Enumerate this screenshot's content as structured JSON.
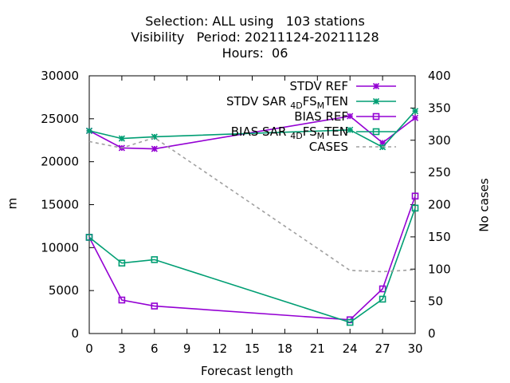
{
  "chart_data": {
    "type": "line",
    "title_lines": [
      "Selection: ALL using   103 stations",
      "Visibility   Period: 20211124-20211128",
      "Hours:  06"
    ],
    "xlabel": "Forecast length",
    "ylabel": "m",
    "y2label": "No cases",
    "x_ticks": [
      0,
      3,
      6,
      9,
      12,
      15,
      18,
      21,
      24,
      27,
      30
    ],
    "xlim": [
      0,
      30
    ],
    "ylim": [
      0,
      30000
    ],
    "y_ticks": [
      0,
      5000,
      10000,
      15000,
      20000,
      25000,
      30000
    ],
    "y2lim": [
      0,
      400
    ],
    "y2_ticks": [
      0,
      50,
      100,
      150,
      200,
      250,
      300,
      350,
      400
    ],
    "grid": false,
    "legend_position": "top-right",
    "series": [
      {
        "name": "STDV REF",
        "axis": "y",
        "color": "#9400d3",
        "marker": "x",
        "dash": false,
        "x": [
          0,
          3,
          6,
          24,
          27,
          30
        ],
        "values": [
          23600,
          21600,
          21500,
          25300,
          22200,
          25100
        ]
      },
      {
        "name": "STDV SAR",
        "sub1": "4D",
        "mid": "FS",
        "sub2": "M",
        "tail": "TEN",
        "axis": "y",
        "color": "#009e73",
        "marker": "x",
        "dash": false,
        "x": [
          0,
          3,
          6,
          24,
          27,
          30
        ],
        "values": [
          23600,
          22700,
          22900,
          23700,
          21700,
          25900
        ]
      },
      {
        "name": "BIAS REF",
        "axis": "y",
        "color": "#9400d3",
        "marker": "square",
        "dash": false,
        "x": [
          0,
          3,
          6,
          24,
          27,
          30
        ],
        "values": [
          11200,
          3900,
          3200,
          1600,
          5200,
          16000
        ]
      },
      {
        "name": "BIAS SAR",
        "sub1": "4D",
        "mid": "FS",
        "sub2": "M",
        "tail": "TEN",
        "axis": "y",
        "color": "#009e73",
        "marker": "square",
        "dash": false,
        "x": [
          0,
          3,
          6,
          24,
          27,
          30
        ],
        "values": [
          11200,
          8200,
          8600,
          1300,
          4000,
          14600
        ]
      },
      {
        "name": "CASES",
        "axis": "y2",
        "color": "#a0a0a0",
        "marker": "none",
        "dash": true,
        "x": [
          0,
          3,
          6,
          24,
          27,
          30
        ],
        "values": [
          298,
          288,
          304,
          98,
          96,
          99
        ]
      }
    ]
  }
}
